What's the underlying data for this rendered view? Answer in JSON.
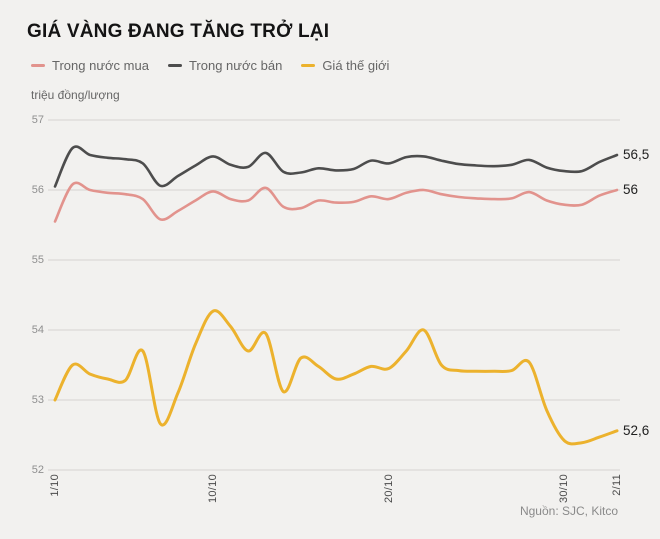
{
  "title": "GIÁ VÀNG ĐANG TĂNG TRỞ LẠI",
  "y_axis_unit": "triệu đồng/lượng",
  "source": "Nguồn: SJC, Kitco",
  "colors": {
    "background": "#f2f1ef",
    "grid": "#d6d4d1",
    "title_text": "#141414",
    "legend_text": "#666666",
    "y_tick_text": "#8f8f8f",
    "x_tick_text": "#4a4a4a",
    "end_label_text": "#1f1f1f"
  },
  "chart_data": {
    "type": "line",
    "title": "GIÁ VÀNG ĐANG TĂNG TRỞ LẠI",
    "ylabel": "triệu đồng/lượng",
    "ylim": [
      52,
      57
    ],
    "grid": "horizontal",
    "legend_position": "top-left",
    "x": [
      "1/10",
      "2/10",
      "3/10",
      "4/10",
      "5/10",
      "6/10",
      "7/10",
      "8/10",
      "9/10",
      "10/10",
      "11/10",
      "12/10",
      "13/10",
      "14/10",
      "15/10",
      "16/10",
      "17/10",
      "18/10",
      "19/10",
      "20/10",
      "21/10",
      "22/10",
      "23/10",
      "24/10",
      "25/10",
      "26/10",
      "27/10",
      "28/10",
      "29/10",
      "30/10",
      "31/10",
      "1/11",
      "2/11"
    ],
    "x_ticks": [
      {
        "day": 0,
        "label": "1/10"
      },
      {
        "day": 9,
        "label": "10/10"
      },
      {
        "day": 19,
        "label": "20/10"
      },
      {
        "day": 29,
        "label": "30/10"
      },
      {
        "day": 32,
        "label": "2/11"
      }
    ],
    "y_ticks": [
      57,
      56,
      55,
      54,
      53,
      52
    ],
    "series": [
      {
        "name": "Trong nước mua",
        "color": "#e2938d",
        "end_label": "56",
        "values": [
          55.55,
          56.08,
          56.0,
          55.96,
          55.94,
          55.87,
          55.58,
          55.7,
          55.85,
          55.98,
          55.87,
          55.85,
          56.03,
          55.76,
          55.74,
          55.85,
          55.82,
          55.83,
          55.91,
          55.87,
          55.96,
          56.0,
          55.94,
          55.9,
          55.88,
          55.87,
          55.88,
          55.97,
          55.85,
          55.79,
          55.79,
          55.92,
          56.0
        ]
      },
      {
        "name": "Trong nước bán",
        "color": "#4d4d4d",
        "end_label": "56,5",
        "values": [
          56.05,
          56.6,
          56.5,
          56.46,
          56.44,
          56.38,
          56.06,
          56.2,
          56.35,
          56.48,
          56.36,
          56.33,
          56.53,
          56.26,
          56.25,
          56.31,
          56.28,
          56.3,
          56.42,
          56.38,
          56.47,
          56.48,
          56.42,
          56.37,
          56.35,
          56.34,
          56.36,
          56.43,
          56.32,
          56.27,
          56.27,
          56.4,
          56.5
        ]
      },
      {
        "name": "Giá thế giới",
        "color": "#ecb22d",
        "end_label": "52,6",
        "values": [
          53.0,
          53.5,
          53.37,
          53.3,
          53.28,
          53.7,
          52.66,
          53.1,
          53.8,
          54.27,
          54.05,
          53.7,
          53.95,
          53.12,
          53.6,
          53.48,
          53.3,
          53.37,
          53.48,
          53.45,
          53.7,
          54.0,
          53.5,
          53.42,
          53.41,
          53.41,
          53.42,
          53.54,
          52.85,
          52.42,
          52.39,
          52.47,
          52.56
        ]
      }
    ]
  }
}
